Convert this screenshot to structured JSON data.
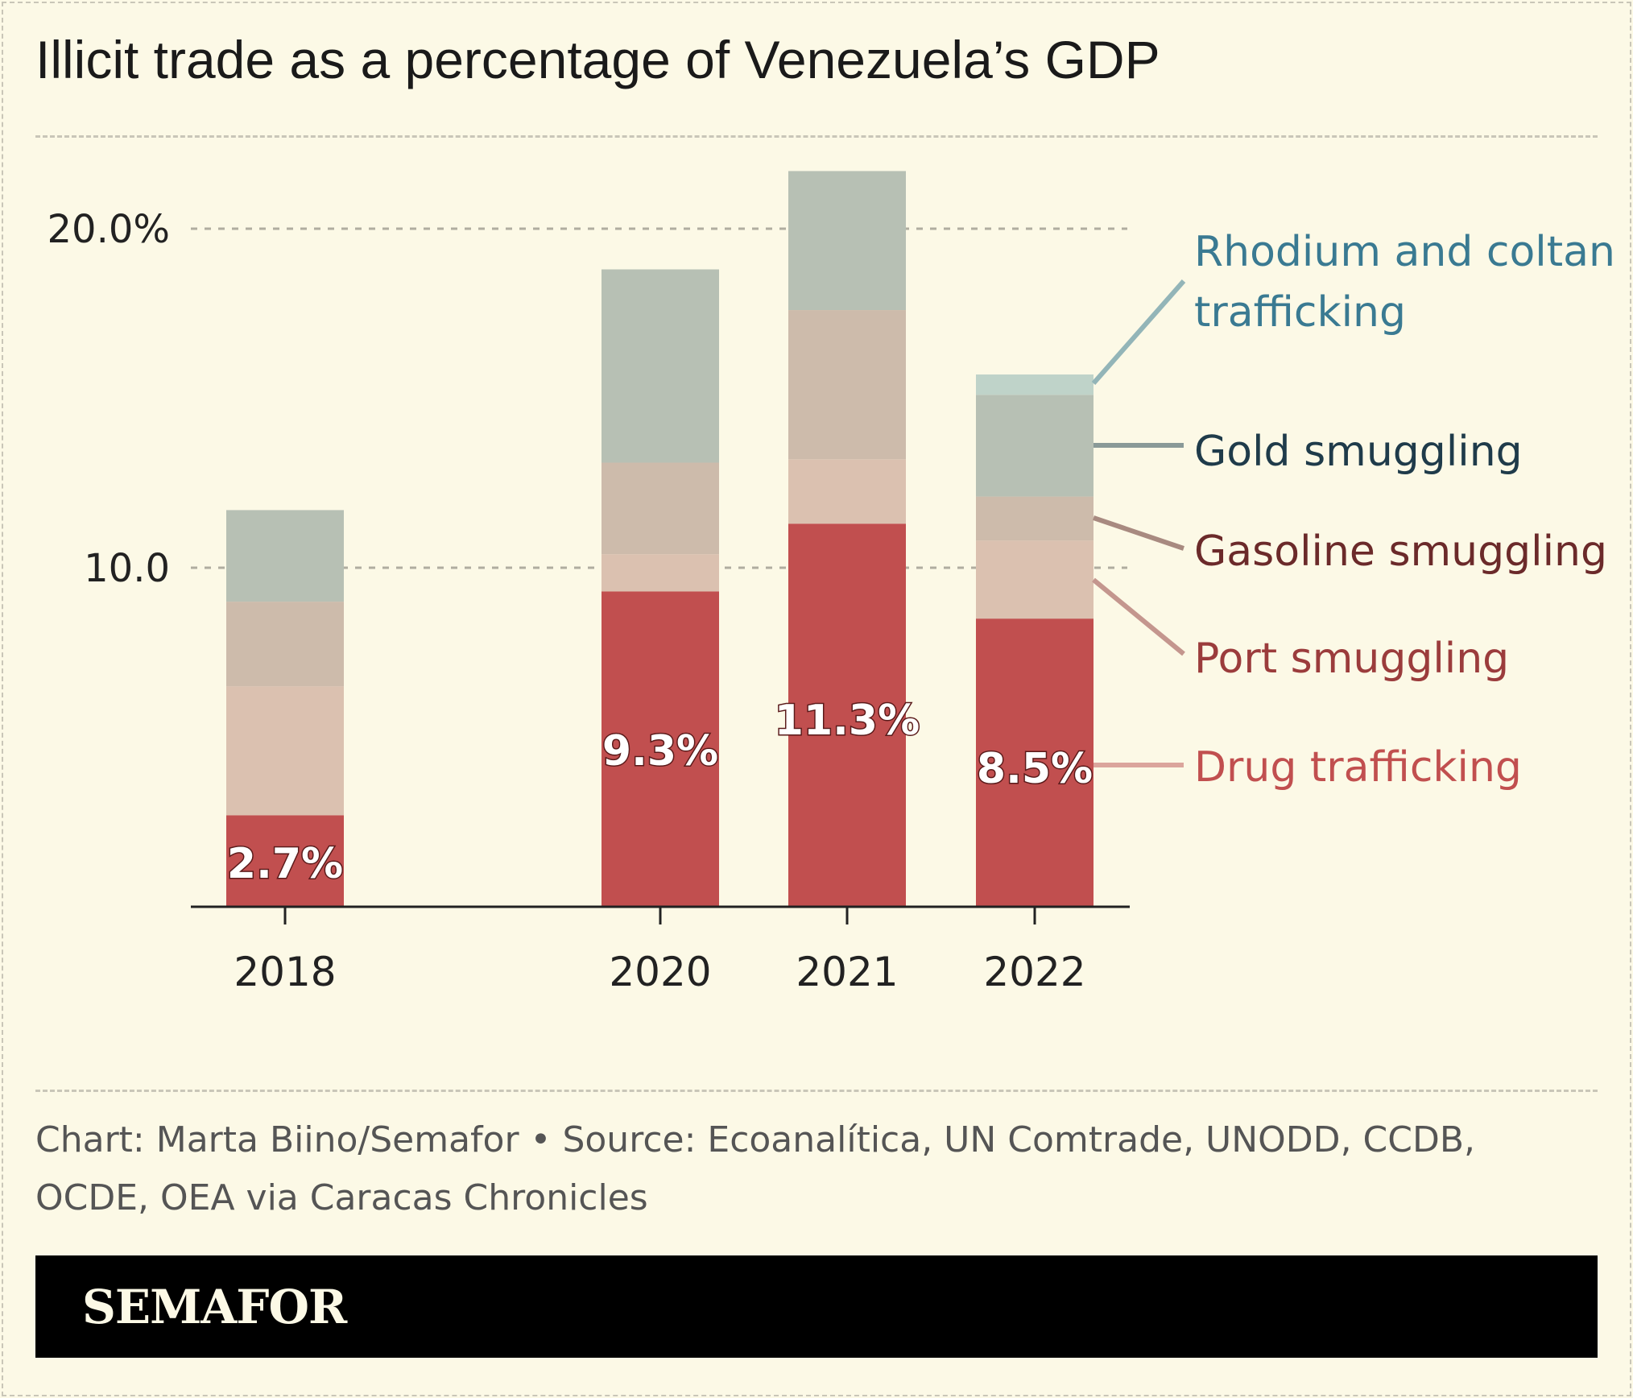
{
  "title": "Illicit trade as a percentage of Venezuela’s GDP",
  "footer": "Chart: Marta Biino/Semafor • Source: Ecoanalítica, UN Comtrade, UNODD, CCDB, OCDE, OEA via Caracas Chronicles",
  "brand": "SEMAFOR",
  "chart_data": {
    "type": "bar",
    "stacked": true,
    "categories": [
      "2018",
      "2020",
      "2021",
      "2022"
    ],
    "ylim": [
      0,
      22
    ],
    "yticks": [
      {
        "value": 10,
        "label": "10.0"
      },
      {
        "value": 20,
        "label": "20.0%"
      }
    ],
    "grid": true,
    "legend": "right",
    "series": [
      {
        "name": "Drug trafficking",
        "values": [
          2.7,
          9.3,
          11.3,
          8.5
        ],
        "color": "#c14f4f",
        "text_color": "#c14f4f",
        "line_color": "#dba59c"
      },
      {
        "name": "Port smuggling",
        "values": [
          3.8,
          1.1,
          1.9,
          2.3
        ],
        "color": "#dbc1b0",
        "text_color": "#9b3c3c",
        "line_color": "#c4968e"
      },
      {
        "name": "Gasoline smuggling",
        "values": [
          2.5,
          2.7,
          4.4,
          1.3
        ],
        "color": "#cdbbab",
        "text_color": "#6b2a2a",
        "line_color": "#a88a80"
      },
      {
        "name": "Gold smuggling",
        "values": [
          2.7,
          5.7,
          4.1,
          3.0
        ],
        "color": "#b7c0b4",
        "text_color": "#1f3b4a",
        "line_color": "#8a9a98"
      },
      {
        "name": "Rhodium and coltan trafficking",
        "name_lines": [
          "Rhodium and coltan",
          "trafficking"
        ],
        "values": [
          0,
          0,
          0,
          0.6
        ],
        "color": "#bfd3c9",
        "text_color": "#3a7a92",
        "line_color": "#93b5b8"
      }
    ],
    "data_labels": [
      "2.7%",
      "9.3%",
      "11.3%",
      "8.5%"
    ]
  }
}
